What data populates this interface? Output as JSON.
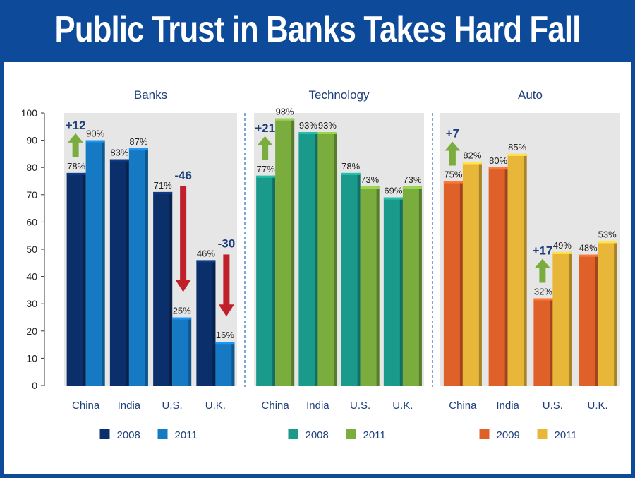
{
  "title": "Public Trust in Banks Takes Hard Fall",
  "chart_data": {
    "type": "bar",
    "ylim": [
      0,
      100
    ],
    "yticks": [
      "0",
      "10",
      "20",
      "30",
      "40",
      "50",
      "60",
      "70",
      "80",
      "90",
      "100"
    ],
    "categories": [
      "China",
      "India",
      "U.S.",
      "U.K."
    ],
    "grid": false,
    "legend_position": "bottom",
    "panels": [
      {
        "title": "Banks",
        "series": [
          {
            "name": "2008",
            "values": [
              78,
              83,
              71,
              46
            ],
            "color": "#0b2f6b"
          },
          {
            "name": "2011",
            "values": [
              90,
              87,
              25,
              16
            ],
            "color": "#1579c4"
          }
        ],
        "value_labels": [
          [
            "78%",
            "83%",
            "71%",
            "46%"
          ],
          [
            "90%",
            "87%",
            "25%",
            "16%"
          ]
        ],
        "changes": [
          {
            "category": "China",
            "label": "+12",
            "direction": "up",
            "color": "#7aac3e"
          },
          {
            "category": "U.S.",
            "label": "-46",
            "direction": "down",
            "color": "#c0202a"
          },
          {
            "category": "U.K.",
            "label": "-30",
            "direction": "down",
            "color": "#c0202a"
          }
        ]
      },
      {
        "title": "Technology",
        "series": [
          {
            "name": "2008",
            "values": [
              77,
              93,
              78,
              69
            ],
            "color": "#1a9a8a"
          },
          {
            "name": "2011",
            "values": [
              98,
              93,
              73,
              73
            ],
            "color": "#7aac3e"
          }
        ],
        "value_labels": [
          [
            "77%",
            "93%",
            "78%",
            "69%"
          ],
          [
            "98%",
            "93%",
            "73%",
            "73%"
          ]
        ],
        "changes": [
          {
            "category": "China",
            "label": "+21",
            "direction": "up",
            "color": "#7aac3e"
          }
        ]
      },
      {
        "title": "Auto",
        "series": [
          {
            "name": "2009",
            "values": [
              75,
              80,
              32,
              48
            ],
            "color": "#e0602a"
          },
          {
            "name": "2011",
            "values": [
              82,
              85,
              49,
              53
            ],
            "color": "#e8b73a"
          }
        ],
        "value_labels": [
          [
            "75%",
            "80%",
            "32%",
            "48%"
          ],
          [
            "82%",
            "85%",
            "49%",
            "53%"
          ]
        ],
        "changes": [
          {
            "category": "China",
            "label": "+7",
            "direction": "up",
            "color": "#7aac3e"
          },
          {
            "category": "U.S.",
            "label": "+17",
            "direction": "up",
            "color": "#7aac3e"
          }
        ]
      }
    ]
  }
}
